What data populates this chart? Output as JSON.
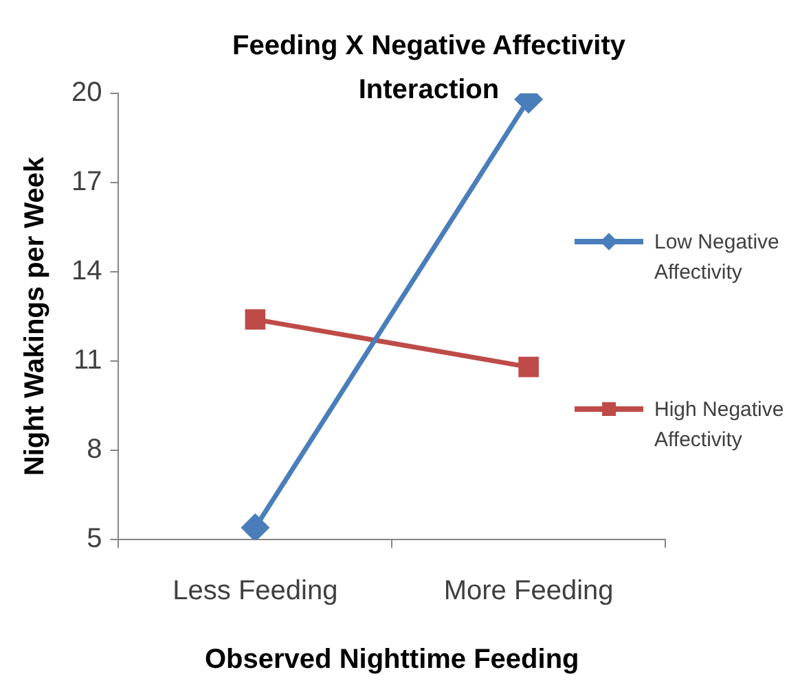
{
  "chart_data": {
    "type": "line",
    "title": "Feeding X Negative Affectivity Interaction",
    "xlabel": "Observed Nighttime Feeding",
    "ylabel": "Night Wakings per Week",
    "categories": [
      "Less Feeding",
      "More Feeding"
    ],
    "series": [
      {
        "name": "Low Negative Affectivity",
        "color": "#4a7ebb",
        "marker": "diamond",
        "values": [
          5.4,
          19.8
        ]
      },
      {
        "name": "High Negative Affectivity",
        "color": "#be4b48",
        "marker": "square",
        "values": [
          12.4,
          10.8
        ]
      }
    ],
    "ylim": [
      5,
      20
    ],
    "yticks": [
      5,
      8,
      11,
      14,
      17,
      20
    ],
    "grid": false,
    "legend": "right"
  }
}
